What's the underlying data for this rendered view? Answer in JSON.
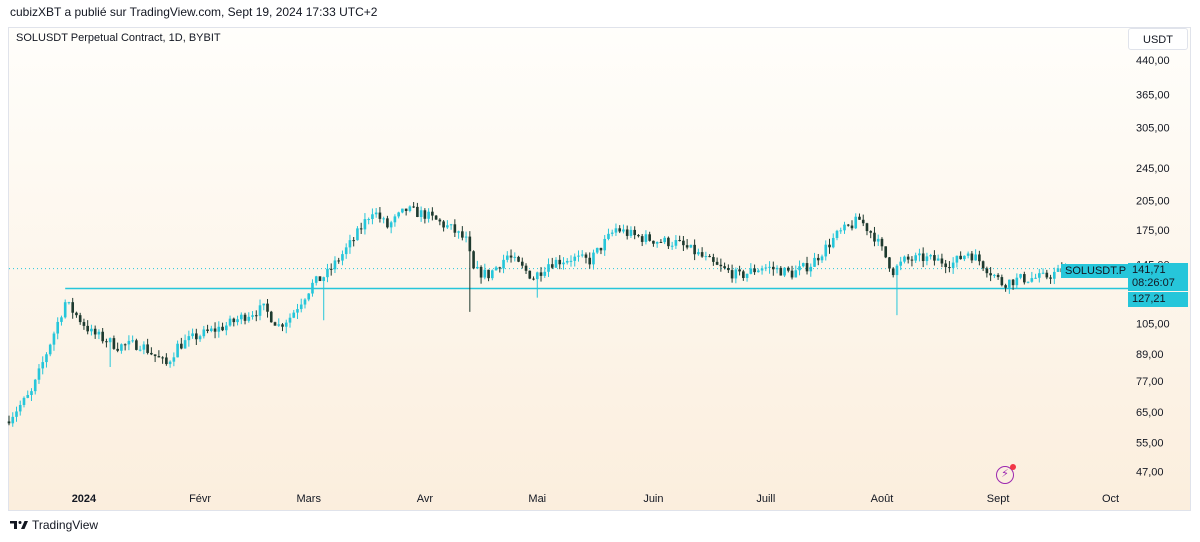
{
  "publisher_line": "cubizXBT a publié sur TradingView.com, Sept 19, 2024 17:33 UTC+2",
  "footer_brand": "TradingView",
  "currency_button": "USDT",
  "chart_data": {
    "type": "candlestick",
    "title": "SOLUSDT Perpetual Contract, 1D, BYBIT",
    "scale": "log",
    "ylim": [
      43,
      470
    ],
    "y_ticks": [
      {
        "value": 440,
        "label": "440,00"
      },
      {
        "value": 365,
        "label": "365,00"
      },
      {
        "value": 305,
        "label": "305,00"
      },
      {
        "value": 245,
        "label": "245,00"
      },
      {
        "value": 205,
        "label": "205,00"
      },
      {
        "value": 175,
        "label": "175,00"
      },
      {
        "value": 145,
        "label": "145,00"
      },
      {
        "value": 105,
        "label": "105,00"
      },
      {
        "value": 89,
        "label": "89,00"
      },
      {
        "value": 77,
        "label": "77,00"
      },
      {
        "value": 65,
        "label": "65,00"
      },
      {
        "value": 55,
        "label": "55,00"
      },
      {
        "value": 47,
        "label": "47,00"
      }
    ],
    "x_ticks": [
      {
        "label": "2024",
        "bold": true
      },
      {
        "label": "Févr",
        "bold": false
      },
      {
        "label": "Mars",
        "bold": false
      },
      {
        "label": "Avr",
        "bold": false
      },
      {
        "label": "Mai",
        "bold": false
      },
      {
        "label": "Juin",
        "bold": false
      },
      {
        "label": "Juill",
        "bold": false
      },
      {
        "label": "Août",
        "bold": false
      },
      {
        "label": "Sept",
        "bold": false
      },
      {
        "label": "Oct",
        "bold": false
      }
    ],
    "x_start": "2023-12-12",
    "x_end": "2024-10-03",
    "last_price": 141.71,
    "countdown": "08:26:07",
    "symbol_label": "SOLUSDT.P",
    "horizontal_line": {
      "value": 127.21,
      "label": "127,21"
    },
    "last_price_label": "141,71",
    "colors": {
      "up": "#26c6da",
      "down": "#1e3a2f",
      "line": "#26c6da"
    },
    "close_path": [
      [
        "2023-12-12",
        63
      ],
      [
        "2023-12-18",
        72
      ],
      [
        "2023-12-24",
        100
      ],
      [
        "2023-12-27",
        118
      ],
      [
        "2024-01-03",
        100
      ],
      [
        "2024-01-10",
        93
      ],
      [
        "2024-01-16",
        94
      ],
      [
        "2024-01-23",
        84
      ],
      [
        "2024-01-26",
        93
      ],
      [
        "2024-01-31",
        98
      ],
      [
        "2024-02-08",
        104
      ],
      [
        "2024-02-14",
        111
      ],
      [
        "2024-02-18",
        114
      ],
      [
        "2024-02-22",
        104
      ],
      [
        "2024-02-25",
        109
      ],
      [
        "2024-03-02",
        130
      ],
      [
        "2024-03-06",
        138
      ],
      [
        "2024-03-13",
        166
      ],
      [
        "2024-03-18",
        195
      ],
      [
        "2024-03-22",
        178
      ],
      [
        "2024-03-27",
        195
      ],
      [
        "2024-04-01",
        190
      ],
      [
        "2024-04-08",
        176
      ],
      [
        "2024-04-12",
        165
      ],
      [
        "2024-04-14",
        140
      ],
      [
        "2024-04-18",
        137
      ],
      [
        "2024-04-23",
        152
      ],
      [
        "2024-04-30",
        135
      ],
      [
        "2024-05-04",
        146
      ],
      [
        "2024-05-10",
        150
      ],
      [
        "2024-05-15",
        148
      ],
      [
        "2024-05-22",
        176
      ],
      [
        "2024-05-27",
        169
      ],
      [
        "2024-06-02",
        165
      ],
      [
        "2024-06-07",
        163
      ],
      [
        "2024-06-12",
        155
      ],
      [
        "2024-06-18",
        143
      ],
      [
        "2024-06-24",
        136
      ],
      [
        "2024-06-30",
        143
      ],
      [
        "2024-07-04",
        141
      ],
      [
        "2024-07-08",
        138
      ],
      [
        "2024-07-13",
        145
      ],
      [
        "2024-07-20",
        170
      ],
      [
        "2024-07-26",
        185
      ],
      [
        "2024-07-30",
        169
      ],
      [
        "2024-08-04",
        140
      ],
      [
        "2024-08-07",
        148
      ],
      [
        "2024-08-12",
        150
      ],
      [
        "2024-08-20",
        146
      ],
      [
        "2024-08-24",
        155
      ],
      [
        "2024-08-27",
        148
      ],
      [
        "2024-09-02",
        131
      ],
      [
        "2024-09-07",
        134
      ],
      [
        "2024-09-13",
        135
      ],
      [
        "2024-09-17",
        139
      ],
      [
        "2024-09-19",
        141.71
      ]
    ],
    "wick_extremes": [
      {
        "date": "2024-04-13",
        "low": 112
      },
      {
        "date": "2024-05-01",
        "low": 121
      },
      {
        "date": "2024-08-05",
        "low": 110
      },
      {
        "date": "2024-03-05",
        "low": 107
      },
      {
        "date": "2024-01-08",
        "low": 83
      }
    ]
  }
}
